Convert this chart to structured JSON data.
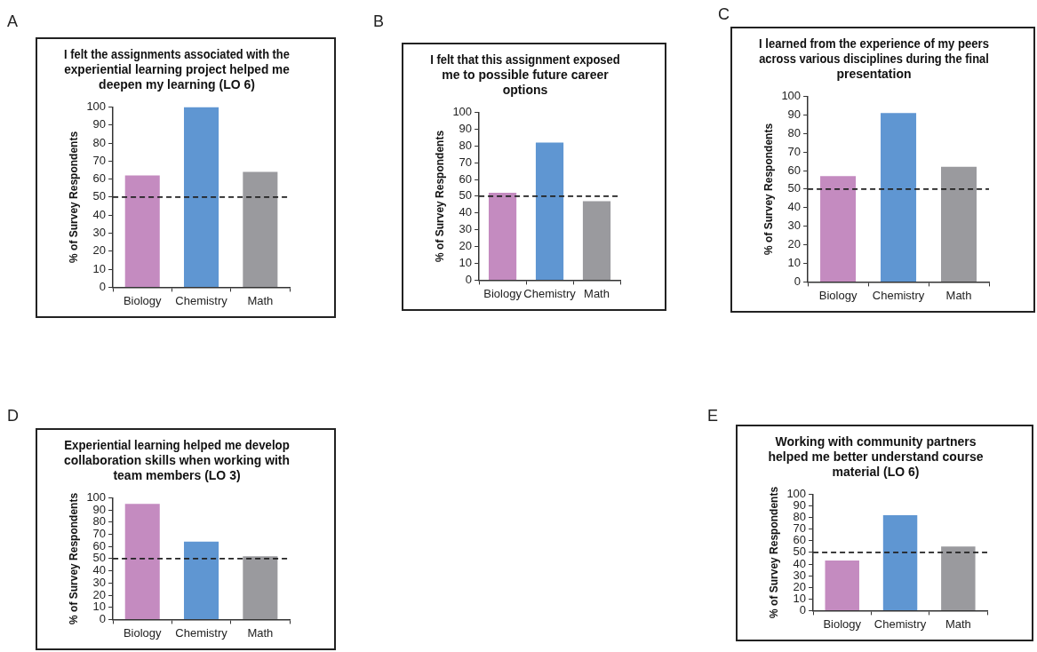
{
  "chart_data": [
    {
      "type": "bar",
      "title": "I felt the assignments associated with the experiential learning project helped me deepen my learning (LO 6)",
      "ylabel": "% of Survey Respondents",
      "categories": [
        "Biology",
        "Chemistry",
        "Math"
      ],
      "values": [
        62,
        100,
        64
      ],
      "colors": [
        "#c48bc0",
        "#5f96d2",
        "#9a9a9e"
      ],
      "ylim": [
        0,
        100
      ],
      "yticks": [
        0,
        10,
        20,
        30,
        40,
        50,
        60,
        70,
        80,
        90,
        100
      ],
      "ref_lines": [
        {
          "axis": "y",
          "value": 50,
          "line_style": "dashed",
          "color": "#222222"
        }
      ],
      "annotations": [
        "A"
      ],
      "grid": false
    },
    {
      "type": "bar",
      "title": "I felt that this assignment exposed me to possible future career options",
      "ylabel": "% of Survey Respondents",
      "categories": [
        "Biology",
        "Chemistry",
        "Math"
      ],
      "values": [
        52,
        82,
        47
      ],
      "colors": [
        "#c48bc0",
        "#5f96d2",
        "#9a9a9e"
      ],
      "ylim": [
        0,
        100
      ],
      "yticks": [
        0,
        10,
        20,
        30,
        40,
        50,
        60,
        70,
        80,
        90,
        100
      ],
      "ref_lines": [
        {
          "axis": "y",
          "value": 50,
          "line_style": "dashed",
          "color": "#222222"
        }
      ],
      "annotations": [
        "B"
      ],
      "grid": false
    },
    {
      "type": "bar",
      "title": "I learned from the experience of my peers across various disciplines during the final presentation",
      "ylabel": "% of Survey Respondents",
      "categories": [
        "Biology",
        "Chemistry",
        "Math"
      ],
      "values": [
        57,
        91,
        62
      ],
      "colors": [
        "#c48bc0",
        "#5f96d2",
        "#9a9a9e"
      ],
      "ylim": [
        0,
        100
      ],
      "yticks": [
        0,
        10,
        20,
        30,
        40,
        50,
        60,
        70,
        80,
        90,
        100
      ],
      "ref_lines": [
        {
          "axis": "y",
          "value": 50,
          "line_style": "dashed",
          "color": "#222222"
        }
      ],
      "annotations": [
        "C"
      ],
      "grid": false
    },
    {
      "type": "bar",
      "title": "Experiential learning helped me develop collaboration skills when working with team members (LO 3)",
      "ylabel": "% of Survey Respondents",
      "categories": [
        "Biology",
        "Chemistry",
        "Math"
      ],
      "values": [
        95,
        64,
        52
      ],
      "colors": [
        "#c48bc0",
        "#5f96d2",
        "#9a9a9e"
      ],
      "ylim": [
        0,
        100
      ],
      "yticks": [
        0,
        10,
        20,
        30,
        40,
        50,
        60,
        70,
        80,
        90,
        100
      ],
      "ref_lines": [
        {
          "axis": "y",
          "value": 50,
          "line_style": "dashed",
          "color": "#222222"
        }
      ],
      "annotations": [
        "D"
      ],
      "grid": false
    },
    {
      "type": "bar",
      "title": "Working with community partners helped me better understand course material (LO 6)",
      "ylabel": "% of Survey Respondents",
      "categories": [
        "Biology",
        "Chemistry",
        "Math"
      ],
      "values": [
        43,
        82,
        55
      ],
      "colors": [
        "#c48bc0",
        "#5f96d2",
        "#9a9a9e"
      ],
      "ylim": [
        0,
        100
      ],
      "yticks": [
        0,
        10,
        20,
        30,
        40,
        50,
        60,
        70,
        80,
        90,
        100
      ],
      "ref_lines": [
        {
          "axis": "y",
          "value": 50,
          "line_style": "dashed",
          "color": "#222222"
        }
      ],
      "annotations": [
        "E"
      ],
      "grid": false
    }
  ]
}
